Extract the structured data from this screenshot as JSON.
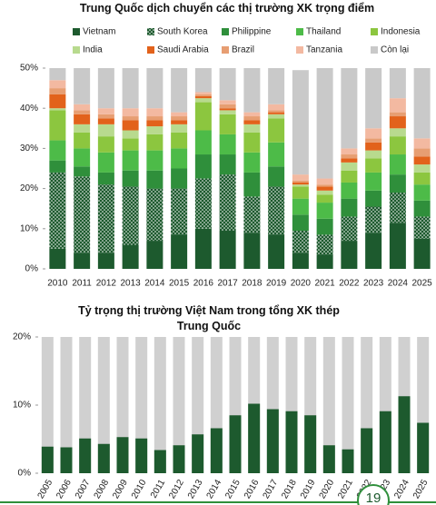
{
  "chart_data": [
    {
      "type": "stacked_bar",
      "title": "Trung Quốc dịch chuyển các thị trường XK trọng điểm",
      "categories": [
        "2010",
        "2011",
        "2012",
        "2013",
        "2014",
        "2015",
        "2016",
        "2017",
        "2018",
        "2019",
        "2020",
        "2021",
        "2022",
        "2023",
        "2024",
        "2025"
      ],
      "series": [
        {
          "name": "Vietnam",
          "color": "#1d5a2e",
          "values": [
            5,
            4,
            4,
            6,
            7,
            8.5,
            10,
            9.5,
            9,
            8.5,
            4,
            3.5,
            7,
            9,
            11.5,
            7.5
          ]
        },
        {
          "name": "South Korea",
          "color": "#1d5a2e",
          "pattern": "dotted",
          "values": [
            19,
            19,
            17,
            14.5,
            13,
            11.5,
            12.5,
            14,
            9,
            12,
            5.5,
            5,
            6,
            6.5,
            7.5,
            5.5
          ]
        },
        {
          "name": "Philippine",
          "color": "#2f8f3b",
          "values": [
            3,
            2.5,
            3,
            4,
            4.5,
            5,
            6,
            5,
            6,
            5,
            4,
            4,
            4.5,
            4,
            4.5,
            4
          ]
        },
        {
          "name": "Thailand",
          "color": "#4dbb48",
          "values": [
            5,
            4.5,
            5,
            5,
            5,
            5,
            6,
            5,
            5,
            6,
            4,
            4,
            4,
            4.5,
            5,
            4
          ]
        },
        {
          "name": "Indonesia",
          "color": "#8cc63f",
          "values": [
            7.5,
            4,
            4,
            3,
            4,
            4,
            7,
            5,
            5,
            6,
            3,
            2,
            3,
            3.5,
            4.5,
            3
          ]
        },
        {
          "name": "India",
          "color": "#b8da8e",
          "values": [
            0.5,
            2,
            3,
            2,
            2,
            2,
            1,
            1,
            2,
            1,
            0.5,
            1,
            2,
            2,
            2,
            2
          ]
        },
        {
          "name": "Saudi Arabia",
          "color": "#e2621b",
          "values": [
            3.5,
            2.5,
            1.5,
            2.5,
            1.5,
            1,
            0.5,
            0.5,
            1,
            0.5,
            0.5,
            1,
            1,
            2,
            3,
            2
          ]
        },
        {
          "name": "Brazil",
          "color": "#e79e72",
          "values": [
            1.5,
            1,
            1,
            1,
            1,
            1,
            0.5,
            1,
            1,
            0.5,
            0.5,
            0.5,
            1,
            1,
            1,
            2
          ]
        },
        {
          "name": "Tanzania",
          "color": "#f3b9a1",
          "values": [
            2,
            1.5,
            1.5,
            2,
            2,
            1,
            0.5,
            1,
            1,
            1.5,
            1.5,
            1.5,
            1.5,
            2.5,
            3.5,
            2.5
          ]
        },
        {
          "name": "Còn lại",
          "color": "#c9c9c9",
          "values": [
            3,
            9,
            10,
            10,
            10,
            11,
            6,
            8,
            11,
            9,
            26,
            27.5,
            20,
            15,
            7.5,
            17.5
          ]
        }
      ],
      "ylim": [
        0,
        50
      ],
      "yticks": [
        {
          "value": 0,
          "label": "0%"
        },
        {
          "value": 10,
          "label": "10%"
        },
        {
          "value": 20,
          "label": "20%"
        },
        {
          "value": 30,
          "label": "30%"
        },
        {
          "value": 40,
          "label": "40%"
        },
        {
          "value": 50,
          "label": "50%"
        }
      ],
      "legend": "top"
    },
    {
      "type": "bar",
      "title": "Tỷ trọng thị trường Việt Nam trong tổng XK thép Trung Quốc",
      "categories": [
        "2005",
        "2006",
        "2007",
        "2008",
        "2009",
        "2010",
        "2011",
        "2012",
        "2013",
        "2014",
        "2015",
        "2016",
        "2017",
        "2018",
        "2019",
        "2020",
        "2021",
        "2022",
        "2023",
        "2024",
        "2025"
      ],
      "values": [
        3.9,
        3.8,
        5.1,
        4.3,
        5.3,
        5.1,
        3.4,
        4.1,
        5.7,
        6.6,
        8.5,
        10.2,
        9.4,
        9.1,
        8.5,
        4.1,
        3.5,
        6.6,
        9.1,
        11.3,
        7.4
      ],
      "color": "#1d5a2e",
      "ylim": [
        0,
        20
      ],
      "yticks": [
        {
          "value": 0,
          "label": "0%"
        },
        {
          "value": 10,
          "label": "10%"
        },
        {
          "value": 20,
          "label": "20%"
        }
      ]
    }
  ],
  "page_number": "19"
}
